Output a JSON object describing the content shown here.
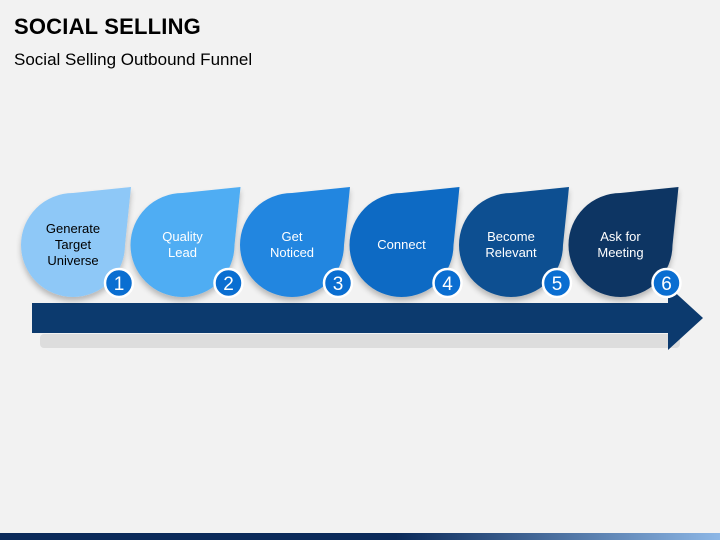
{
  "title": "SOCIAL SELLING",
  "subtitle": "Social Selling Outbound Funnel",
  "steps": [
    {
      "number": "1",
      "label_lines": [
        "Generate",
        "Target",
        "Universe"
      ],
      "color": "#8ec8f7",
      "text_color": "#000000"
    },
    {
      "number": "2",
      "label_lines": [
        "Quality",
        "Lead"
      ],
      "color": "#4fadf3",
      "text_color": "#ffffff"
    },
    {
      "number": "3",
      "label_lines": [
        "Get",
        "Noticed"
      ],
      "color": "#2286e0",
      "text_color": "#ffffff"
    },
    {
      "number": "4",
      "label_lines": [
        "Connect"
      ],
      "color": "#0a6bc4",
      "text_color": "#ffffff"
    },
    {
      "number": "5",
      "label_lines": [
        "Become",
        "Relevant"
      ],
      "color": "#0a4f91",
      "text_color": "#ffffff"
    },
    {
      "number": "6",
      "label_lines": [
        "Ask for",
        "Meeting"
      ],
      "color": "#0b3564",
      "text_color": "#ffffff"
    }
  ],
  "colors": {
    "arrow": "#0c3a6e",
    "badge_fill": "#0a6ed1",
    "badge_stroke": "#ffffff"
  }
}
